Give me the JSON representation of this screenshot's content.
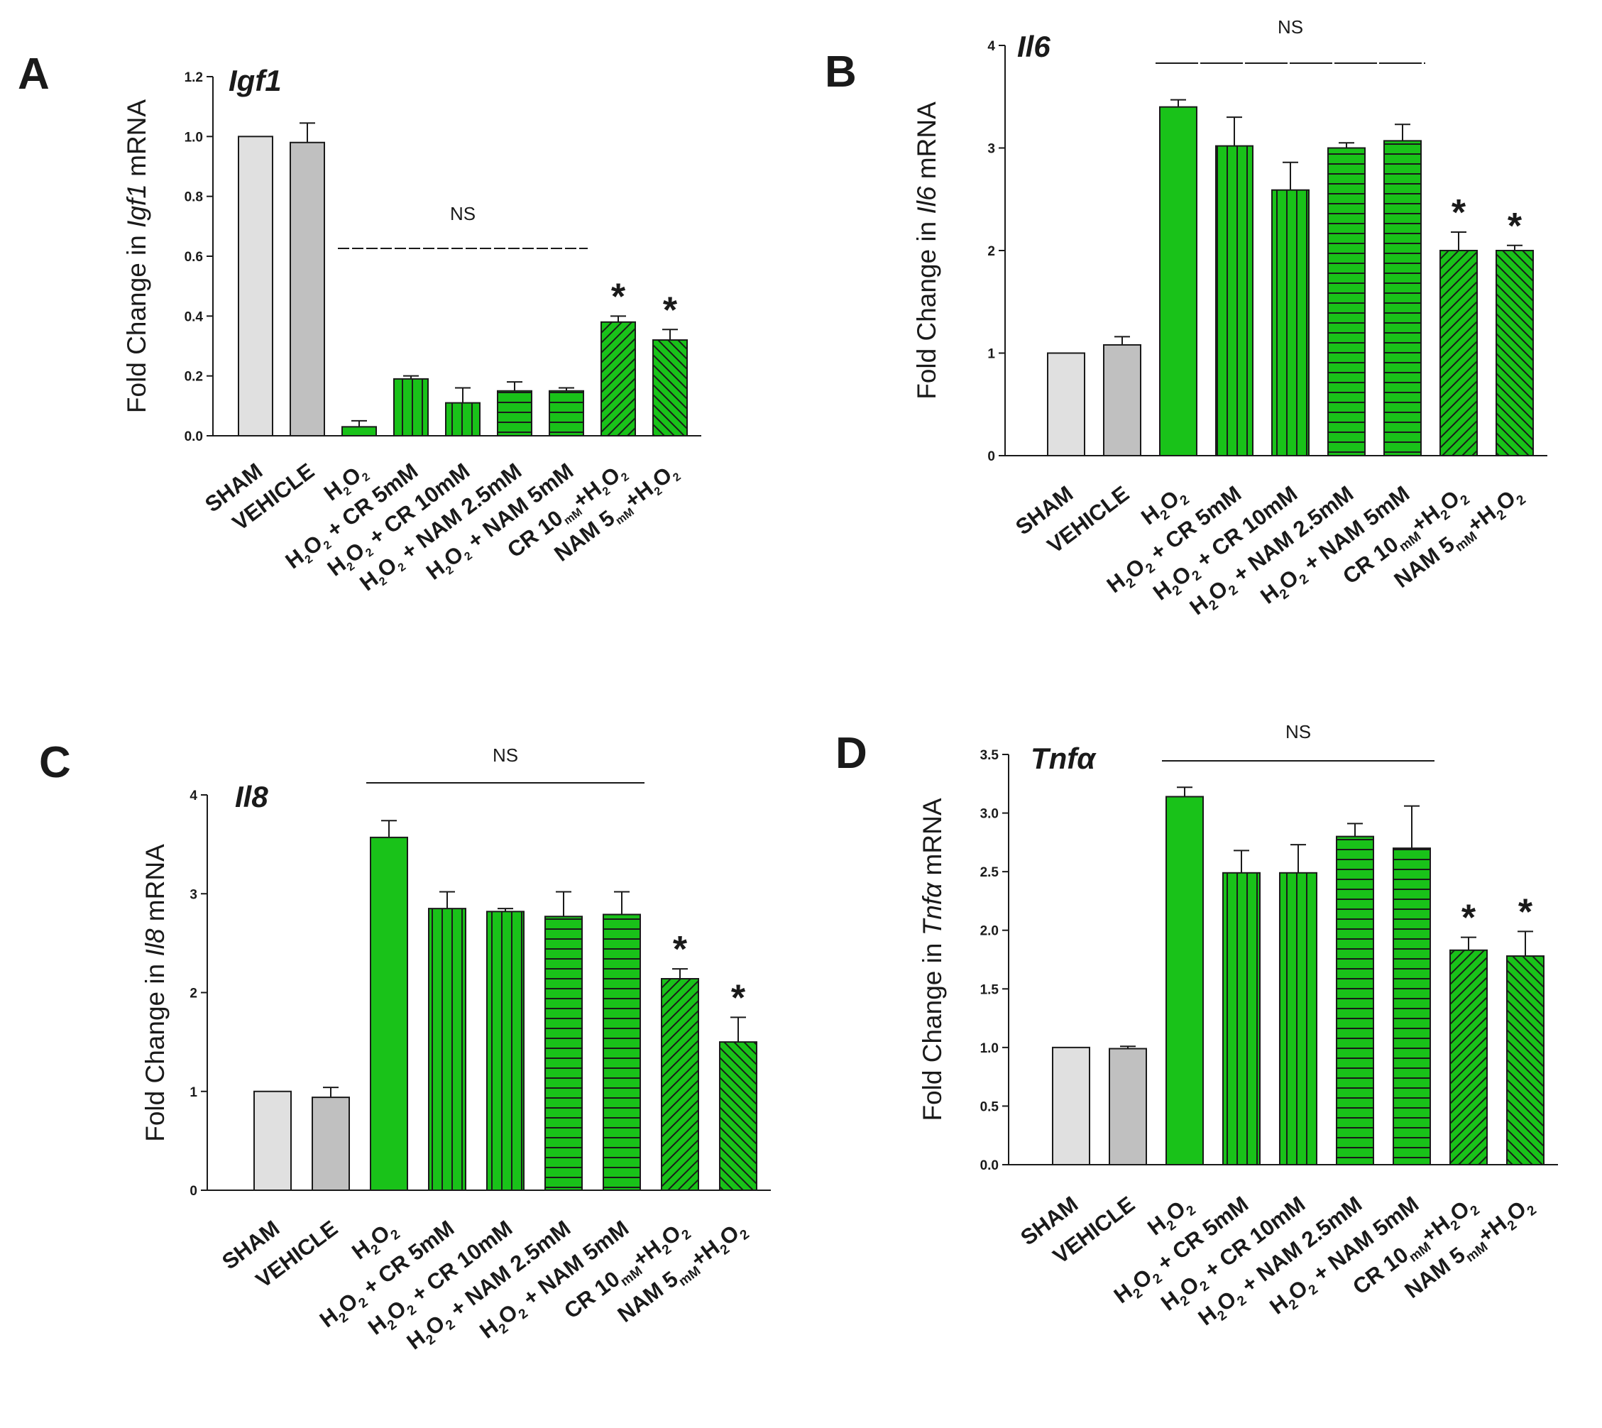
{
  "colors": {
    "green": "#19c219",
    "sham": "#e0e0e0",
    "vehicle": "#c0c0c0",
    "axis": "#1a1a1a"
  },
  "chart_data": [
    {
      "type": "bar",
      "panel": "A",
      "gene": "Igf1",
      "ylabel": [
        "Fold Change in ",
        "Igf1",
        " mRNA"
      ],
      "ylim": [
        0,
        1.2
      ],
      "yticks": [
        "0.0",
        "0.2",
        "0.4",
        "0.6",
        "0.8",
        "1.0",
        "1.2"
      ],
      "categories": [
        [
          "SHAM"
        ],
        [
          "VEHICLE"
        ],
        [
          "H",
          "2",
          "O",
          "2"
        ],
        [
          "H",
          "2",
          "O",
          "2",
          " + CR 5mM"
        ],
        [
          "H",
          "2",
          "O",
          "2",
          " + CR 10mM"
        ],
        [
          "H",
          "2",
          "O",
          "2",
          " + NAM 2.5mM"
        ],
        [
          "H",
          "2",
          "O",
          "2",
          " + NAM 5mM"
        ],
        [
          "CR 10",
          "mM",
          "+H",
          "2",
          "O",
          "2"
        ],
        [
          "NAM 5",
          "mM",
          "+H",
          "2",
          "O",
          "2"
        ]
      ],
      "values": [
        1.0,
        0.98,
        0.03,
        0.19,
        0.11,
        0.15,
        0.15,
        0.38,
        0.32
      ],
      "errors": [
        0,
        0.065,
        0.02,
        0.01,
        0.05,
        0.03,
        0.01,
        0.02,
        0.035
      ],
      "patterns": [
        "sham",
        "vehicle",
        "solid",
        "vert",
        "vert",
        "horiz",
        "horiz",
        "diag",
        "diagr"
      ],
      "significant": [
        "",
        "",
        "",
        "",
        "",
        "",
        "",
        "*",
        "*"
      ],
      "ns_label": "NS",
      "ns_span": [
        2,
        6
      ],
      "ns_y": 0.62
    },
    {
      "type": "bar",
      "panel": "B",
      "gene": "Il6",
      "ylabel": [
        "Fold Change in ",
        "Il6",
        " mRNA"
      ],
      "ylim": [
        0,
        4
      ],
      "yticks": [
        "0",
        "1",
        "2",
        "3",
        "4"
      ],
      "categories": [
        [
          "SHAM"
        ],
        [
          "VEHICLE"
        ],
        [
          "H",
          "2",
          "O",
          "2"
        ],
        [
          "H",
          "2",
          "O",
          "2",
          " + CR 5mM"
        ],
        [
          "H",
          "2",
          "O",
          "2",
          " + CR 10mM"
        ],
        [
          "H",
          "2",
          "O",
          "2",
          " + NAM 2.5mM"
        ],
        [
          "H",
          "2",
          "O",
          "2",
          " + NAM 5mM"
        ],
        [
          "CR 10",
          "mM",
          "+H",
          "2",
          "O",
          "2"
        ],
        [
          "NAM 5",
          "mM",
          "+H",
          "2",
          "O",
          "2"
        ]
      ],
      "values": [
        1.0,
        1.08,
        3.4,
        3.02,
        2.59,
        3.0,
        3.07,
        2.0,
        2.0
      ],
      "errors": [
        0,
        0.08,
        0.07,
        0.28,
        0.27,
        0.05,
        0.16,
        0.18,
        0.05
      ],
      "patterns": [
        "sham",
        "vehicle",
        "solid",
        "vert",
        "vert",
        "horiz",
        "horiz",
        "diag",
        "diagr"
      ],
      "significant": [
        "",
        "",
        "",
        "",
        "",
        "",
        "",
        "*",
        "*"
      ],
      "ns_label": "NS",
      "ns_span": [
        2,
        6
      ],
      "ns_y": 3.77
    },
    {
      "type": "bar",
      "panel": "C",
      "gene": "Il8",
      "ylabel": [
        "Fold Change in ",
        "Il8",
        " mRNA"
      ],
      "ylim": [
        0,
        4
      ],
      "yticks": [
        "0",
        "1",
        "2",
        "3",
        "4"
      ],
      "categories": [
        [
          "SHAM"
        ],
        [
          "VEHICLE"
        ],
        [
          "H",
          "2",
          "O",
          "2"
        ],
        [
          "H",
          "2",
          "O",
          "2",
          " + CR 5mM"
        ],
        [
          "H",
          "2",
          "O",
          "2",
          " + CR 10mM"
        ],
        [
          "H",
          "2",
          "O",
          "2",
          " + NAM 2.5mM"
        ],
        [
          "H",
          "2",
          "O",
          "2",
          " + NAM 5mM"
        ],
        [
          "CR 10",
          "mM",
          "+H",
          "2",
          "O",
          "2"
        ],
        [
          "NAM 5",
          "mM",
          "+H",
          "2",
          "O",
          "2"
        ]
      ],
      "values": [
        1.0,
        0.94,
        3.57,
        2.85,
        2.82,
        2.77,
        2.79,
        2.14,
        1.5
      ],
      "errors": [
        0,
        0.1,
        0.17,
        0.17,
        0.03,
        0.25,
        0.23,
        0.1,
        0.25
      ],
      "patterns": [
        "sham",
        "vehicle",
        "solid",
        "vert",
        "vert",
        "horiz",
        "horiz",
        "diag",
        "diagr"
      ],
      "significant": [
        "",
        "",
        "",
        "",
        "",
        "",
        "",
        "*",
        "*"
      ],
      "ns_label": "NS",
      "ns_span": [
        2,
        6
      ],
      "ns_y": 3.95
    },
    {
      "type": "bar",
      "panel": "D",
      "gene": "Tnfα",
      "ylabel": [
        "Fold Change in ",
        "Tnfα",
        " mRNA"
      ],
      "ylim": [
        0,
        3.5
      ],
      "yticks": [
        "0.0",
        "0.5",
        "1.0",
        "1.5",
        "2.0",
        "2.5",
        "3.0",
        "3.5"
      ],
      "categories": [
        [
          "SHAM"
        ],
        [
          "VEHICLE"
        ],
        [
          "H",
          "2",
          "O",
          "2"
        ],
        [
          "H",
          "2",
          "O",
          "2",
          " + CR 5mM"
        ],
        [
          "H",
          "2",
          "O",
          "2",
          " + CR 10mM"
        ],
        [
          "H",
          "2",
          "O",
          "2",
          " + NAM 2.5mM"
        ],
        [
          "H",
          "2",
          "O",
          "2",
          " + NAM 5mM"
        ],
        [
          "CR 10",
          "mM",
          "+H",
          "2",
          "O",
          "2"
        ],
        [
          "NAM 5",
          "mM",
          "+H",
          "2",
          "O",
          "2"
        ]
      ],
      "values": [
        1.0,
        0.99,
        3.14,
        2.49,
        2.49,
        2.8,
        2.7,
        1.83,
        1.78
      ],
      "errors": [
        0,
        0.02,
        0.08,
        0.19,
        0.24,
        0.11,
        0.36,
        0.11,
        0.21
      ],
      "patterns": [
        "sham",
        "vehicle",
        "solid",
        "vert",
        "vert",
        "horiz",
        "horiz",
        "diag",
        "diagr"
      ],
      "significant": [
        "",
        "",
        "",
        "",
        "",
        "",
        "",
        "*",
        "*"
      ],
      "ns_label": "NS",
      "ns_span": [
        2,
        6
      ],
      "ns_y": 3.42
    }
  ]
}
